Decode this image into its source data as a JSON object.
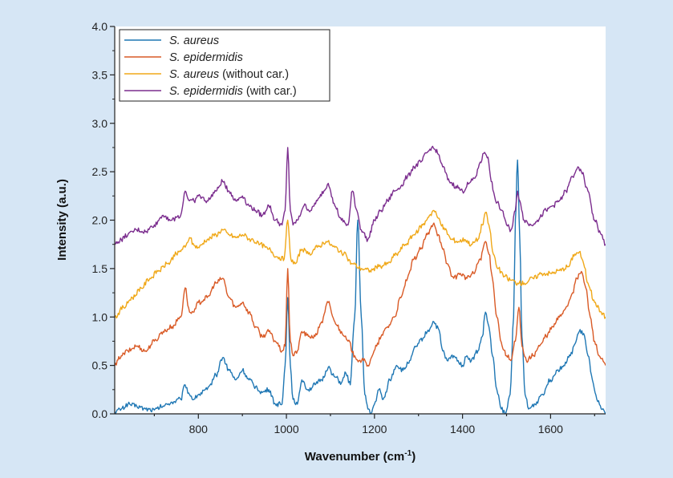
{
  "chart_data": {
    "type": "line",
    "title": "",
    "xlabel": "Wavenumber (cm",
    "xlabel_sup": "-1",
    "xlabel_end": ")",
    "ylabel": "Intensity (a.u.)",
    "xlim": [
      610,
      1725
    ],
    "ylim": [
      0,
      4.0
    ],
    "x_ticks": [
      800,
      1000,
      1200,
      1400,
      1600
    ],
    "y_ticks": [
      0.0,
      0.5,
      1.0,
      1.5,
      2.0,
      2.5,
      3.0,
      3.5,
      4.0
    ],
    "x_tick_labels": [
      "800",
      "1000",
      "1200",
      "1400",
      "1600"
    ],
    "y_tick_labels": [
      "0.0",
      "0.5",
      "1.0",
      "1.5",
      "2.0",
      "2.5",
      "3.0",
      "3.5",
      "4.0"
    ],
    "grid": false,
    "legend_position": "top-left",
    "legend": [
      {
        "italic": "S. aureus",
        "rest": ""
      },
      {
        "italic": "S. epidermidis",
        "rest": ""
      },
      {
        "italic": "S. aureus",
        "rest": " (without car.)"
      },
      {
        "italic": "S. epidermidis",
        "rest": " (with car.)"
      }
    ],
    "series": [
      {
        "color": "#1f77b4",
        "x": [
          610,
          625,
          640,
          660,
          680,
          700,
          720,
          740,
          760,
          770,
          780,
          790,
          800,
          820,
          840,
          855,
          870,
          885,
          900,
          915,
          930,
          945,
          960,
          975,
          990,
          997,
          1003,
          1009,
          1015,
          1025,
          1035,
          1050,
          1065,
          1080,
          1095,
          1110,
          1125,
          1135,
          1145,
          1155,
          1162,
          1170,
          1178,
          1185,
          1192,
          1200,
          1210,
          1220,
          1235,
          1250,
          1265,
          1280,
          1295,
          1310,
          1320,
          1335,
          1345,
          1355,
          1365,
          1380,
          1390,
          1400,
          1410,
          1420,
          1435,
          1445,
          1452,
          1460,
          1468,
          1478,
          1488,
          1498,
          1508,
          1516,
          1520,
          1525,
          1530,
          1535,
          1542,
          1550,
          1565,
          1580,
          1600,
          1615,
          1630,
          1645,
          1655,
          1665,
          1675,
          1685,
          1695,
          1705,
          1715,
          1725
        ],
        "y": [
          0.02,
          0.05,
          0.1,
          0.08,
          0.05,
          0.04,
          0.08,
          0.12,
          0.15,
          0.3,
          0.2,
          0.15,
          0.2,
          0.25,
          0.4,
          0.58,
          0.45,
          0.35,
          0.45,
          0.35,
          0.28,
          0.22,
          0.25,
          0.1,
          0.1,
          0.5,
          1.2,
          0.5,
          0.15,
          0.1,
          0.35,
          0.25,
          0.3,
          0.35,
          0.48,
          0.38,
          0.32,
          0.42,
          0.3,
          1.0,
          2.0,
          1.0,
          0.2,
          0.05,
          0.0,
          0.1,
          0.25,
          0.15,
          0.35,
          0.5,
          0.45,
          0.55,
          0.7,
          0.78,
          0.85,
          0.95,
          0.88,
          0.65,
          0.55,
          0.6,
          0.55,
          0.5,
          0.6,
          0.55,
          0.65,
          0.8,
          1.05,
          0.9,
          0.6,
          0.25,
          0.05,
          0.0,
          0.2,
          1.0,
          2.0,
          2.62,
          1.8,
          0.8,
          0.2,
          0.05,
          0.1,
          0.2,
          0.35,
          0.45,
          0.5,
          0.6,
          0.72,
          0.85,
          0.83,
          0.6,
          0.35,
          0.15,
          0.05,
          0.0
        ]
      },
      {
        "color": "#d95a26",
        "x": [
          610,
          625,
          640,
          660,
          680,
          700,
          720,
          740,
          760,
          770,
          780,
          790,
          800,
          820,
          840,
          855,
          870,
          885,
          900,
          915,
          930,
          945,
          960,
          975,
          990,
          997,
          1003,
          1009,
          1015,
          1025,
          1035,
          1050,
          1065,
          1080,
          1095,
          1110,
          1125,
          1140,
          1155,
          1165,
          1175,
          1185,
          1195,
          1205,
          1215,
          1230,
          1245,
          1260,
          1275,
          1290,
          1305,
          1320,
          1335,
          1345,
          1355,
          1365,
          1380,
          1395,
          1410,
          1425,
          1440,
          1452,
          1460,
          1468,
          1478,
          1490,
          1500,
          1510,
          1520,
          1528,
          1535,
          1545,
          1560,
          1575,
          1590,
          1605,
          1620,
          1635,
          1650,
          1660,
          1670,
          1680,
          1690,
          1700,
          1710,
          1725
        ],
        "y": [
          0.5,
          0.6,
          0.65,
          0.7,
          0.65,
          0.75,
          0.85,
          0.9,
          1.0,
          1.3,
          1.05,
          1.05,
          1.15,
          1.2,
          1.35,
          1.4,
          1.2,
          1.1,
          1.15,
          1.05,
          0.9,
          0.8,
          0.85,
          0.75,
          0.65,
          0.7,
          1.5,
          0.75,
          0.6,
          0.65,
          0.85,
          0.8,
          0.8,
          0.95,
          1.15,
          0.95,
          0.85,
          0.75,
          0.6,
          0.55,
          0.55,
          0.5,
          0.6,
          0.7,
          0.8,
          0.9,
          1.0,
          1.2,
          1.4,
          1.6,
          1.7,
          1.85,
          1.97,
          1.85,
          1.7,
          1.55,
          1.4,
          1.45,
          1.4,
          1.45,
          1.6,
          1.78,
          1.65,
          1.4,
          1.0,
          0.7,
          0.6,
          0.55,
          0.75,
          1.1,
          0.7,
          0.55,
          0.6,
          0.7,
          0.8,
          0.9,
          1.0,
          1.1,
          1.25,
          1.4,
          1.47,
          1.3,
          1.0,
          0.75,
          0.6,
          0.5
        ]
      },
      {
        "color": "#f0a818",
        "x": [
          610,
          630,
          650,
          670,
          690,
          710,
          730,
          750,
          770,
          780,
          790,
          800,
          820,
          840,
          855,
          870,
          885,
          900,
          920,
          940,
          960,
          980,
          995,
          1003,
          1010,
          1020,
          1035,
          1050,
          1070,
          1090,
          1110,
          1130,
          1150,
          1170,
          1190,
          1210,
          1230,
          1250,
          1270,
          1290,
          1310,
          1325,
          1335,
          1345,
          1360,
          1375,
          1390,
          1405,
          1420,
          1435,
          1445,
          1452,
          1460,
          1470,
          1480,
          1495,
          1510,
          1525,
          1540,
          1560,
          1580,
          1600,
          1620,
          1640,
          1655,
          1665,
          1675,
          1685,
          1700,
          1715,
          1725
        ],
        "y": [
          1.0,
          1.1,
          1.2,
          1.3,
          1.4,
          1.48,
          1.55,
          1.65,
          1.72,
          1.82,
          1.74,
          1.72,
          1.8,
          1.85,
          1.9,
          1.85,
          1.82,
          1.85,
          1.8,
          1.75,
          1.7,
          1.62,
          1.6,
          2.0,
          1.6,
          1.55,
          1.7,
          1.65,
          1.72,
          1.78,
          1.72,
          1.65,
          1.55,
          1.5,
          1.48,
          1.52,
          1.55,
          1.65,
          1.75,
          1.85,
          1.95,
          2.05,
          2.1,
          2.02,
          1.9,
          1.8,
          1.78,
          1.8,
          1.75,
          1.8,
          1.95,
          2.08,
          1.95,
          1.65,
          1.5,
          1.42,
          1.38,
          1.35,
          1.35,
          1.4,
          1.45,
          1.45,
          1.48,
          1.52,
          1.65,
          1.67,
          1.55,
          1.35,
          1.15,
          1.05,
          1.0
        ]
      },
      {
        "color": "#7b2d8e",
        "x": [
          610,
          625,
          640,
          660,
          680,
          700,
          720,
          740,
          760,
          770,
          780,
          790,
          800,
          820,
          840,
          855,
          870,
          885,
          900,
          915,
          930,
          945,
          960,
          975,
          990,
          997,
          1003,
          1009,
          1015,
          1025,
          1040,
          1055,
          1070,
          1085,
          1095,
          1110,
          1125,
          1140,
          1150,
          1160,
          1170,
          1185,
          1200,
          1215,
          1230,
          1245,
          1260,
          1275,
          1290,
          1305,
          1320,
          1330,
          1338,
          1345,
          1355,
          1370,
          1385,
          1400,
          1415,
          1430,
          1440,
          1450,
          1458,
          1465,
          1475,
          1490,
          1500,
          1510,
          1520,
          1525,
          1530,
          1540,
          1555,
          1570,
          1590,
          1605,
          1620,
          1635,
          1650,
          1660,
          1670,
          1685,
          1700,
          1715,
          1725
        ],
        "y": [
          1.75,
          1.8,
          1.85,
          1.9,
          1.88,
          1.95,
          2.05,
          2.0,
          2.05,
          2.3,
          2.2,
          2.2,
          2.25,
          2.2,
          2.3,
          2.4,
          2.3,
          2.2,
          2.25,
          2.15,
          2.1,
          2.05,
          2.15,
          2.0,
          1.95,
          2.1,
          2.75,
          2.1,
          1.95,
          2.0,
          2.15,
          2.1,
          2.2,
          2.3,
          2.38,
          2.15,
          2.0,
          1.95,
          2.3,
          2.1,
          1.9,
          1.8,
          2.0,
          2.1,
          2.2,
          2.3,
          2.35,
          2.45,
          2.55,
          2.6,
          2.7,
          2.75,
          2.73,
          2.68,
          2.55,
          2.4,
          2.35,
          2.3,
          2.38,
          2.45,
          2.6,
          2.7,
          2.65,
          2.4,
          2.2,
          2.1,
          1.95,
          1.9,
          2.1,
          2.3,
          2.2,
          2.0,
          1.95,
          2.0,
          2.1,
          2.15,
          2.2,
          2.3,
          2.45,
          2.53,
          2.5,
          2.3,
          2.0,
          1.85,
          1.75
        ]
      }
    ]
  }
}
